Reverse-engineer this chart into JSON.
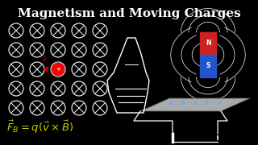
{
  "title": "Magnetism and Moving Charges",
  "title_color": "#ffffff",
  "title_fontsize": 11,
  "bg_color": "#000000",
  "formula": "$\\vec{F}_B = q(\\vec{v} \\times \\vec{B})$",
  "formula_color": "#cccc00",
  "formula_fontsize": 9.5,
  "grid_color": "#ffffff",
  "grid_rows": 5,
  "grid_cols": 5,
  "magnet_red_color": "#cc2222",
  "magnet_blue_color": "#2255cc",
  "plate_color": "#aaaaaa",
  "dot_color": "#66aaff",
  "wire_color": "#ffffff"
}
